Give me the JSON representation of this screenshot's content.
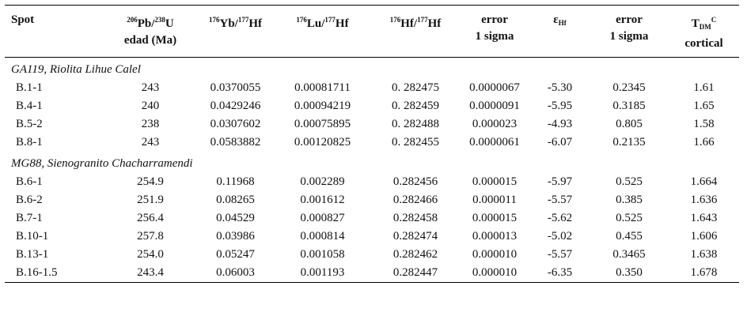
{
  "header": [
    [
      "Spot"
    ],
    [
      "206",
      "Pb/",
      "238",
      "U",
      "edad (Ma)"
    ],
    [
      "176",
      "Yb/",
      "177",
      "Hf"
    ],
    [
      "176",
      "Lu/",
      "177",
      "Hf"
    ],
    [
      "176",
      "Hf/",
      "177",
      "Hf"
    ],
    [
      "error",
      "1 sigma"
    ],
    [
      "ε",
      "Hf"
    ],
    [
      "error",
      "1 sigma"
    ],
    [
      "T",
      "DM",
      "C",
      "cortical"
    ]
  ],
  "groups": [
    {
      "label": "GA119, Riolita Lihue Calel",
      "rows": [
        [
          "B.1-1",
          "243",
          "0.0370055",
          "0.00081711",
          "0. 282475",
          "0.0000067",
          "-5.30",
          "0.2345",
          "1.61"
        ],
        [
          "B.4-1",
          "240",
          "0.0429246",
          "0.00094219",
          "0. 282459",
          "0.0000091",
          "-5.95",
          "0.3185",
          "1.65"
        ],
        [
          "B.5-2",
          "238",
          "0.0307602",
          "0.00075895",
          "0. 282488",
          "0.000023",
          "-4.93",
          "0.805",
          "1.58"
        ],
        [
          "B.8-1",
          "243",
          "0.0583882",
          "0.00120825",
          "0. 282455",
          "0.0000061",
          "-6.07",
          "0.2135",
          "1.66"
        ]
      ]
    },
    {
      "label": "MG88, Sienogranito Chacharramendi",
      "rows": [
        [
          "B.6-1",
          "254.9",
          "0.11968",
          "0.002289",
          "0.282456",
          "0.000015",
          "-5.97",
          "0.525",
          "1.664"
        ],
        [
          "B.6-2",
          "251.9",
          "0.08265",
          "0.001612",
          "0.282466",
          "0.000011",
          "-5.57",
          "0.385",
          "1.636"
        ],
        [
          "B.7-1",
          "256.4",
          "0.04529",
          "0.000827",
          "0.282458",
          "0.000015",
          "-5.62",
          "0.525",
          "1.643"
        ],
        [
          "B.10-1",
          "257.8",
          "0.03986",
          "0.000814",
          "0.282474",
          "0.000013",
          "-5.02",
          "0.455",
          "1.606"
        ],
        [
          "B.13-1",
          "254.0",
          "0.05247",
          "0.001058",
          "0.282462",
          "0.000010",
          "-5.57",
          "0.3465",
          "1.638"
        ],
        [
          "B.16-1.5",
          "243.4",
          "0.06003",
          "0.001193",
          "0.282447",
          "0.000010",
          "-6.35",
          "0.350",
          "1.678"
        ]
      ]
    }
  ]
}
